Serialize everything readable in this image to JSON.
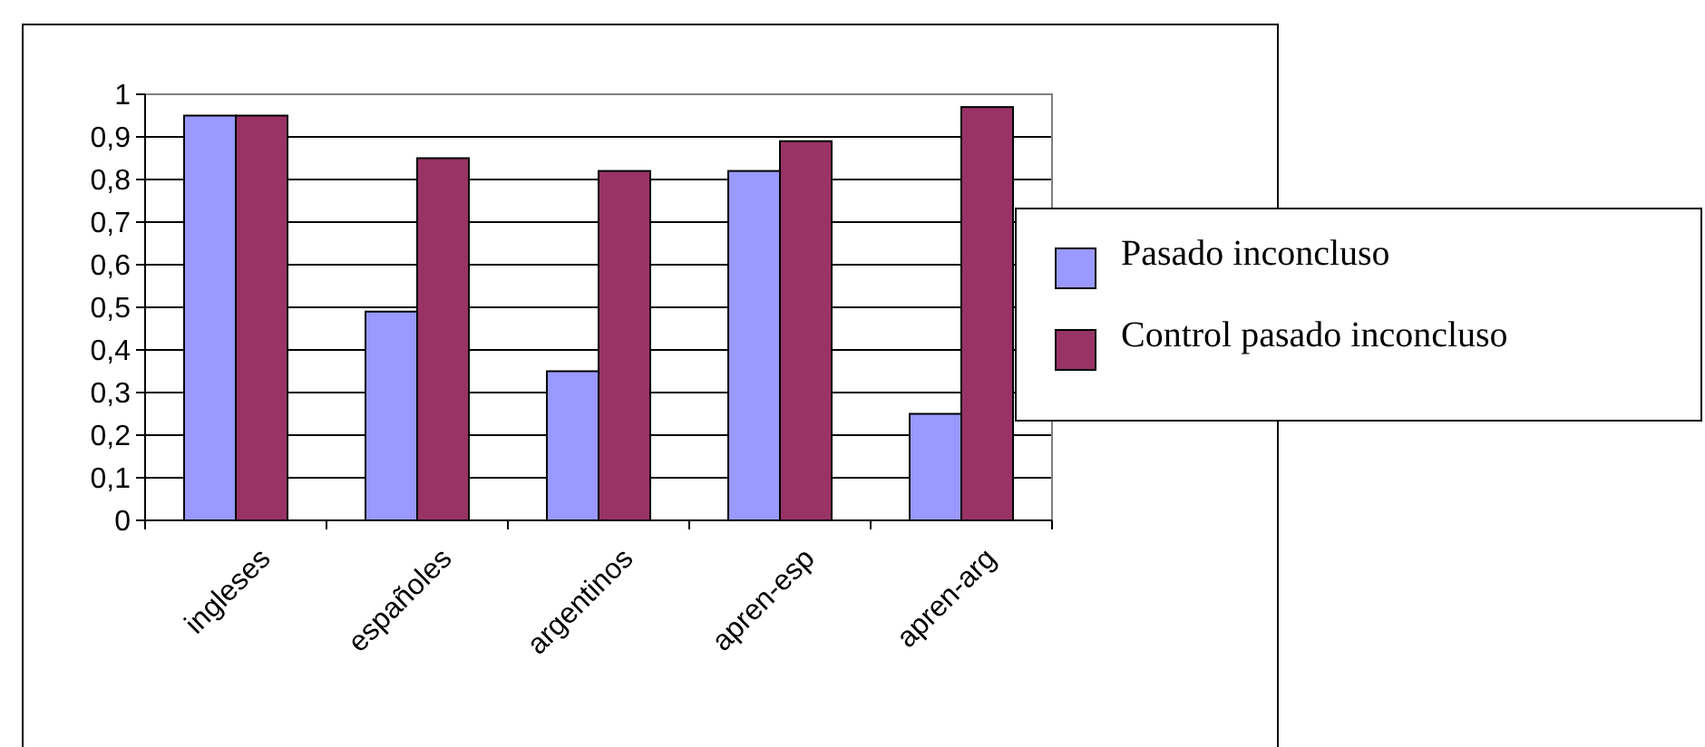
{
  "chart_data": {
    "type": "bar",
    "categories": [
      "ingleses",
      "españoles",
      "argentinos",
      "apren-esp",
      "apren-arg"
    ],
    "series": [
      {
        "name": "Pasado inconcluso",
        "color": "#9999ff",
        "values": [
          0.95,
          0.49,
          0.35,
          0.82,
          0.25
        ]
      },
      {
        "name": "Control pasado inconcluso",
        "color": "#993366",
        "values": [
          0.95,
          0.85,
          0.82,
          0.89,
          0.97
        ]
      }
    ],
    "ylim": [
      0,
      1
    ],
    "yticks": [
      0,
      {
        "value": 0.1,
        "label": "0,1"
      },
      {
        "value": 0.2,
        "label": "0,2"
      },
      {
        "value": 0.3,
        "label": "0,3"
      },
      {
        "value": 0.4,
        "label": "0,4"
      },
      {
        "value": 0.5,
        "label": "0,5"
      },
      {
        "value": 0.6,
        "label": "0,6"
      },
      {
        "value": 0.7,
        "label": "0,7"
      },
      {
        "value": 0.8,
        "label": "0,8"
      },
      {
        "value": 0.9,
        "label": "0,9"
      },
      1
    ],
    "grid": "y",
    "legend": "right"
  }
}
